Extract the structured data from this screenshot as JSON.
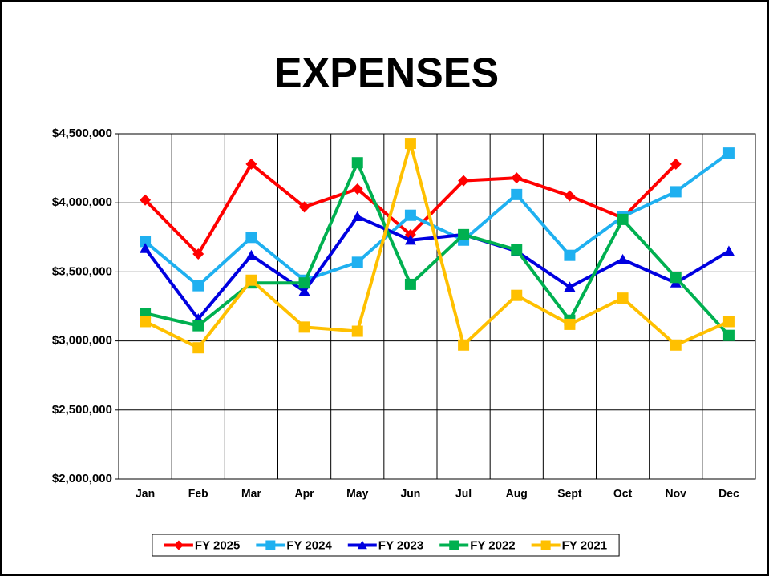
{
  "chart_data": {
    "type": "line",
    "title": "EXPENSES",
    "categories": [
      "Jan",
      "Feb",
      "Mar",
      "Apr",
      "May",
      "Jun",
      "Jul",
      "Aug",
      "Sept",
      "Oct",
      "Nov",
      "Dec"
    ],
    "series": [
      {
        "name": "FY 2025",
        "color": "#ff0000",
        "marker": "diamond",
        "values": [
          4020000,
          3630000,
          4280000,
          3970000,
          4100000,
          3770000,
          4160000,
          4180000,
          4050000,
          3890000,
          4280000,
          null
        ]
      },
      {
        "name": "FY 2024",
        "color": "#1fb0f0",
        "marker": "square",
        "values": [
          3720000,
          3400000,
          3750000,
          3440000,
          3570000,
          3910000,
          3730000,
          4060000,
          3620000,
          3900000,
          4080000,
          4360000
        ]
      },
      {
        "name": "FY 2023",
        "color": "#0000e0",
        "marker": "triangle",
        "values": [
          3670000,
          3160000,
          3620000,
          3360000,
          3900000,
          3730000,
          3770000,
          3650000,
          3390000,
          3590000,
          3420000,
          3650000
        ]
      },
      {
        "name": "FY 2022",
        "color": "#00b050",
        "marker": "square",
        "values": [
          3200000,
          3110000,
          3420000,
          3420000,
          4290000,
          3410000,
          3770000,
          3660000,
          3150000,
          3880000,
          3460000,
          3040000
        ]
      },
      {
        "name": "FY 2021",
        "color": "#ffc000",
        "marker": "square",
        "values": [
          3140000,
          2950000,
          3440000,
          3100000,
          3070000,
          4430000,
          2970000,
          3330000,
          3120000,
          3310000,
          2970000,
          3140000
        ]
      }
    ],
    "ylim": [
      2000000,
      4500000
    ],
    "yticks": [
      {
        "value": 2000000,
        "label": "$2,000,000"
      },
      {
        "value": 2500000,
        "label": "$2,500,000"
      },
      {
        "value": 3000000,
        "label": "$3,000,000"
      },
      {
        "value": 3500000,
        "label": "$3,500,000"
      },
      {
        "value": 4000000,
        "label": "$4,000,000"
      },
      {
        "value": 4500000,
        "label": "$4,500,000"
      }
    ],
    "grid": true,
    "legend": "bottom"
  }
}
